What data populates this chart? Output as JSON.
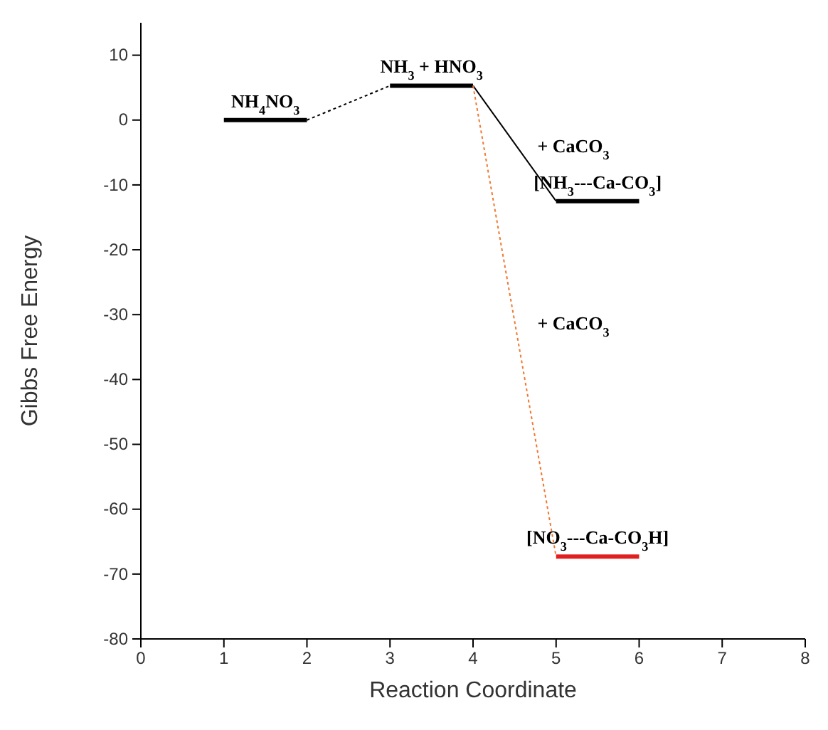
{
  "chart_data": {
    "type": "line",
    "xlabel": "Reaction Coordinate",
    "ylabel": "Gibbs Free Energy",
    "xlim": [
      0,
      8
    ],
    "xticks": [
      0,
      1,
      2,
      3,
      4,
      5,
      6,
      7,
      8
    ],
    "ylim": [
      -80,
      15
    ],
    "yticks": [
      -80,
      -70,
      -60,
      -50,
      -40,
      -30,
      -20,
      -10,
      0,
      10
    ],
    "grid": false,
    "marker": "none",
    "series": [
      {
        "name": "NH$_{4}$NO$_{3}$",
        "color": "#000000",
        "x": [
          1,
          2
        ],
        "values": [
          0,
          0
        ]
      },
      {
        "color": "#000000",
        "x": [
          2,
          3
        ],
        "values": [
          0,
          5.3
        ],
        "line_style": "dotted"
      },
      {
        "name": "NH$_{3}$ +  HNO$_{3}$",
        "color": "#000000",
        "x": [
          3,
          4
        ],
        "values": [
          5.3,
          5.3
        ]
      },
      {
        "name": "+ CaCO$_{3}$",
        "color": "#000000",
        "x": [
          4,
          5
        ],
        "values": [
          5.3,
          -12.5
        ]
      },
      {
        "name": "[NH$_{3}$---Ca-CO$_{3}$]",
        "color": "#000000",
        "x": [
          5,
          6
        ],
        "values": [
          -12.5,
          -12.5
        ]
      },
      {
        "name": "+  CaCO$_{3}$",
        "color": "#f07830",
        "x": [
          4,
          5
        ],
        "values": [
          5.3,
          -67.3
        ],
        "line_style": "dotted"
      },
      {
        "name": "[NO$_{3}$---Ca-CO$_{3}$H]",
        "color": "#e02020",
        "x": [
          5,
          6
        ],
        "values": [
          -67.3,
          -67.3
        ]
      }
    ]
  }
}
